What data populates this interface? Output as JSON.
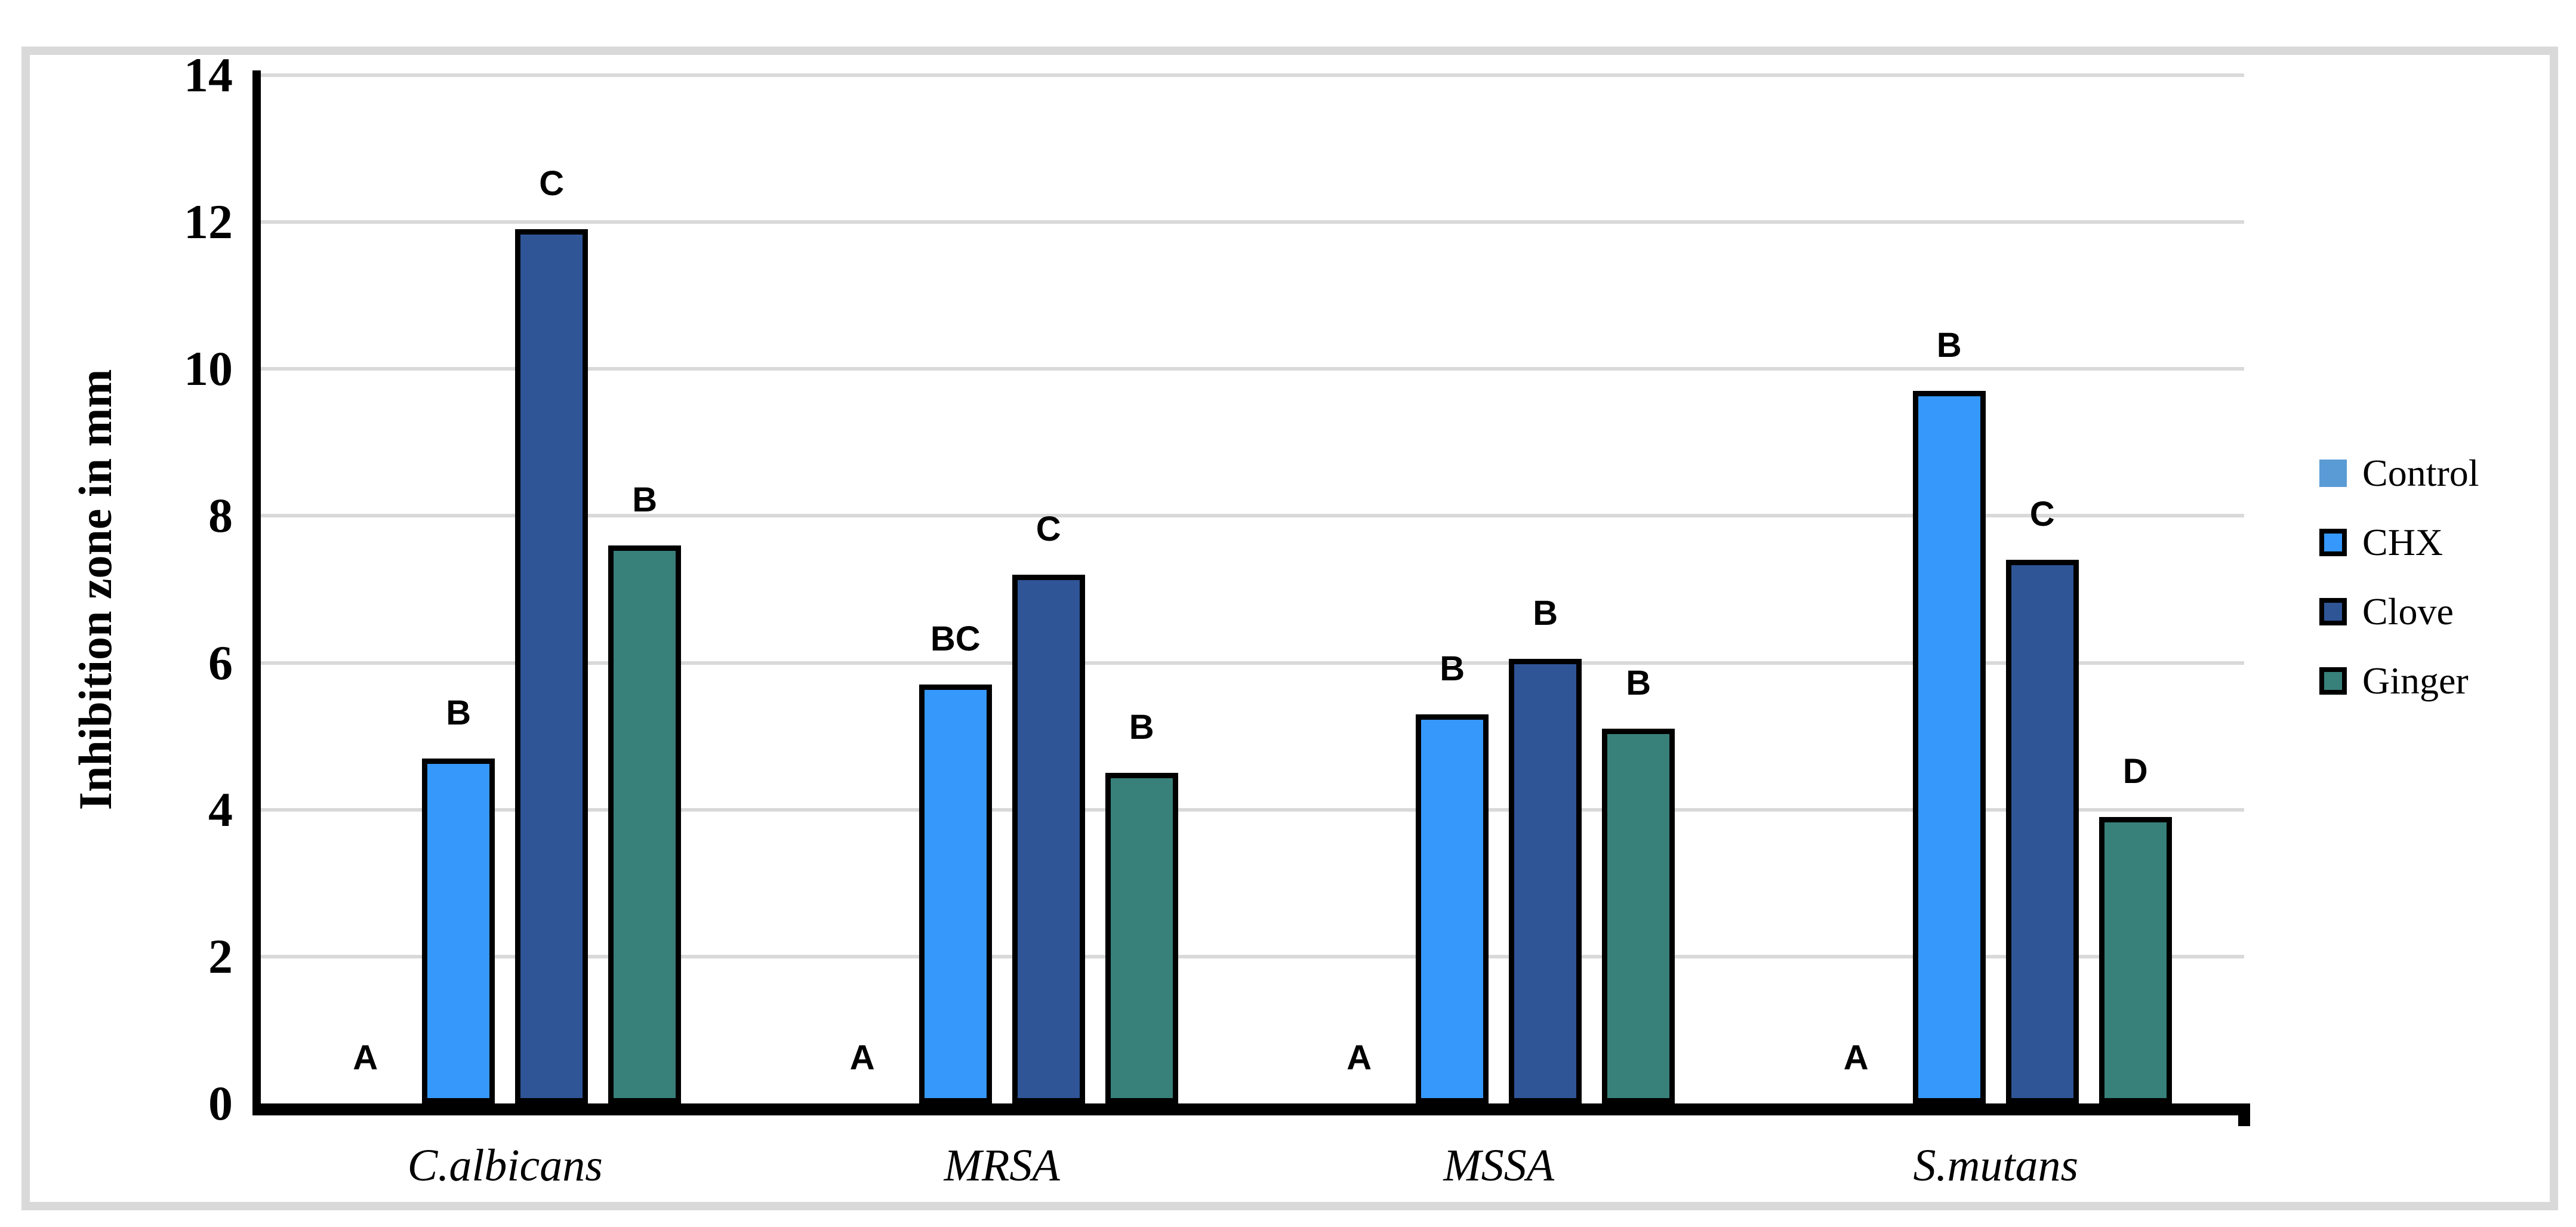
{
  "chart_data": {
    "type": "bar",
    "title": "",
    "xlabel": "",
    "ylabel": "Inhibition zone in mm",
    "ylim": [
      0,
      14
    ],
    "ytick_step": 2,
    "grid": "horizontal",
    "gridline_color": "#D9D9D9",
    "legend_position": "right",
    "frame_color": "#D9D9D9",
    "categories": [
      "C.albicans",
      "MRSA",
      "MSSA",
      "S.mutans"
    ],
    "series": [
      {
        "name": "Control",
        "color": "#5B9BD5",
        "bar_border": false,
        "values": [
          0,
          0,
          0,
          0
        ],
        "sig_letters": [
          "A",
          "A",
          "A",
          "A"
        ]
      },
      {
        "name": "CHX",
        "color": "#3598FA",
        "bar_border": true,
        "values": [
          4.7,
          5.7,
          5.3,
          9.7
        ],
        "sig_letters": [
          "B",
          "BC",
          "B",
          "B"
        ]
      },
      {
        "name": "Clove",
        "color": "#2F5596",
        "bar_border": true,
        "values": [
          11.9,
          7.2,
          6.05,
          7.4
        ],
        "sig_letters": [
          "C",
          "C",
          "B",
          "C"
        ]
      },
      {
        "name": "Ginger",
        "color": "#38807A",
        "bar_border": true,
        "values": [
          7.6,
          4.5,
          5.1,
          3.9
        ],
        "sig_letters": [
          "B",
          "B",
          "B",
          "D"
        ]
      }
    ]
  }
}
